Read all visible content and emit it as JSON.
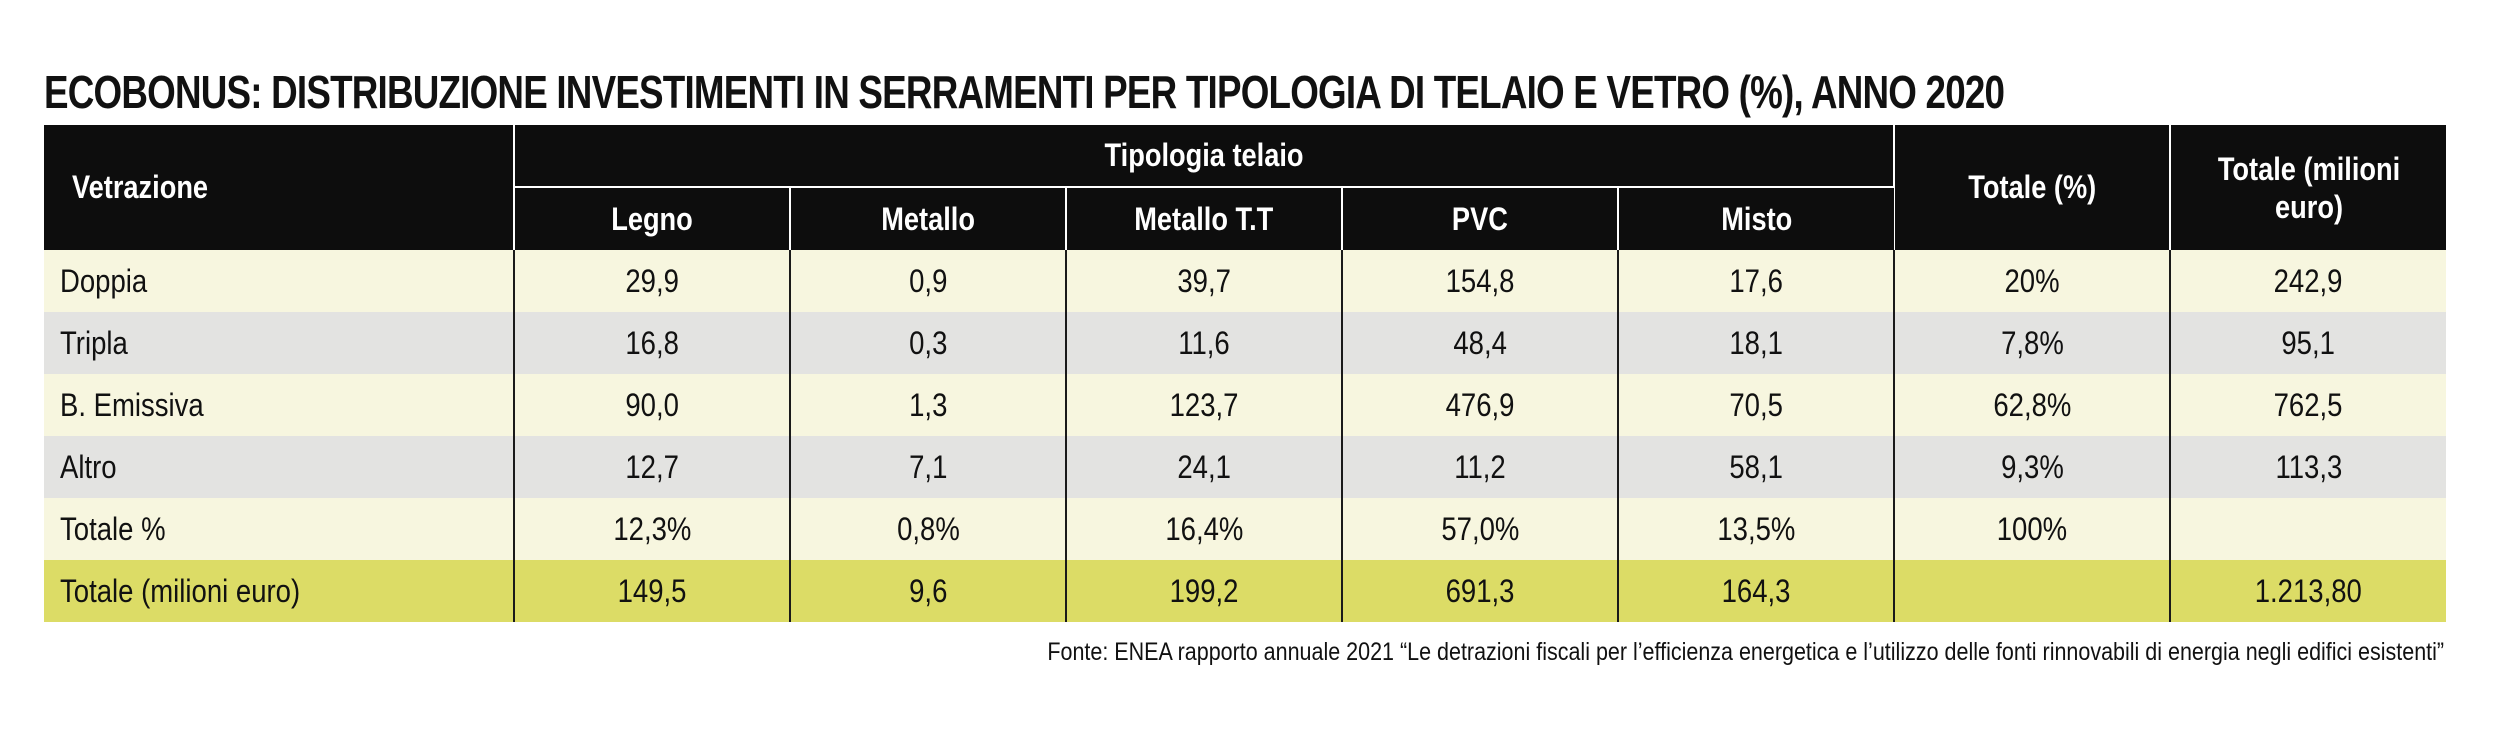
{
  "title": "ECOBONUS: DISTRIBUZIONE INVESTIMENTI IN SERRAMENTI PER TIPOLOGIA DI TELAIO E VETRO (%), ANNO 2020",
  "header": {
    "vetrazione": "Vetrazione",
    "tipologia_telaio": "Tipologia telaio",
    "totale_pct": "Totale (%)",
    "totale_milioni": "Totale (milioni euro)",
    "subcolumns": [
      "Legno",
      "Metallo",
      "Metallo T.T",
      "PVC",
      "Misto"
    ]
  },
  "rows": [
    {
      "label": "Doppia",
      "values": [
        "29,9",
        "0,9",
        "39,7",
        "154,8",
        "17,6",
        "20%",
        "242,9"
      ]
    },
    {
      "label": "Tripla",
      "values": [
        "16,8",
        "0,3",
        "11,6",
        "48,4",
        "18,1",
        "7,8%",
        "95,1"
      ]
    },
    {
      "label": "B. Emissiva",
      "values": [
        "90,0",
        "1,3",
        "123,7",
        "476,9",
        "70,5",
        "62,8%",
        "762,5"
      ]
    },
    {
      "label": "Altro",
      "values": [
        "12,7",
        "7,1",
        "24,1",
        "11,2",
        "58,1",
        "9,3%",
        "113,3"
      ]
    },
    {
      "label": "Totale %",
      "values": [
        "12,3%",
        "0,8%",
        "16,4%",
        "57,0%",
        "13,5%",
        "100%",
        ""
      ]
    },
    {
      "label": "Totale (milioni euro)",
      "values": [
        "149,5",
        "9,6",
        "199,2",
        "691,3",
        "164,3",
        "",
        "1.213,80"
      ]
    }
  ],
  "source": "Fonte: ENEA rapporto annuale 2021 “Le detrazioni fiscali per l’efficienza energetica e l’utilizzo delle fonti rinnovabili di energia negli edifici esistenti”",
  "colors": {
    "header_bg": "#0d0d0d",
    "row_light": "#f7f6df",
    "row_gray": "#e3e3e1",
    "row_total": "#dcdc66"
  }
}
